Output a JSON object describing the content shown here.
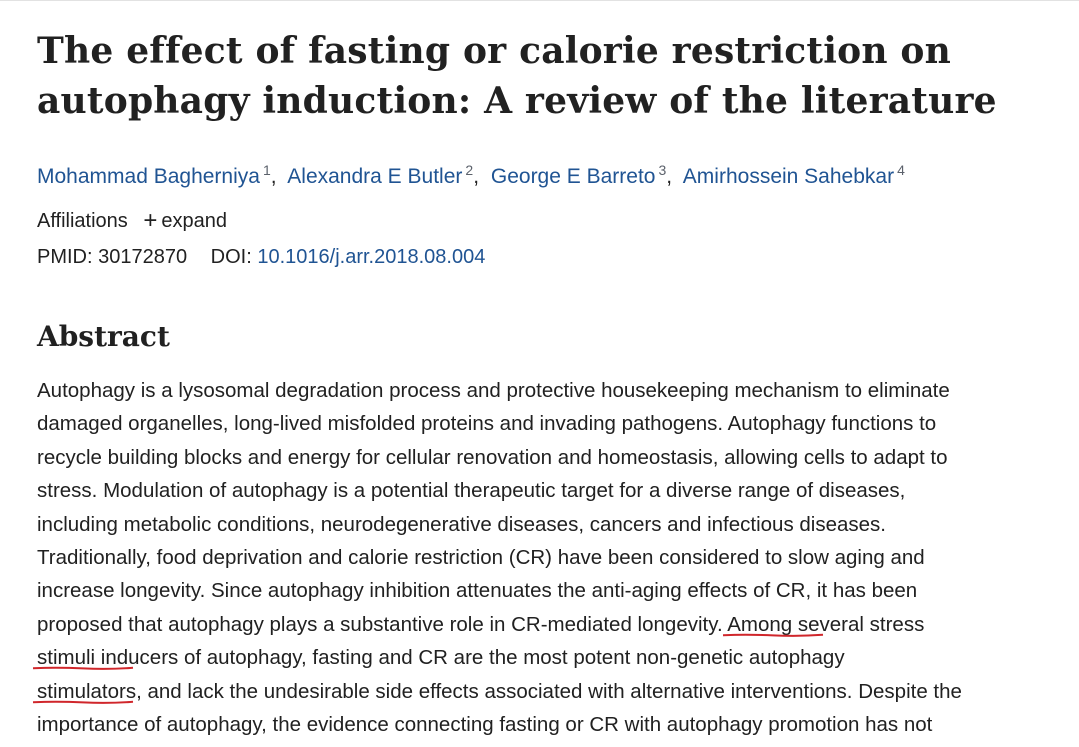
{
  "article": {
    "title": "The effect of fasting or calorie restriction on autophagy induction: A review of the literature",
    "authors": [
      {
        "name": "Mohammad Bagherniya",
        "aff": "1"
      },
      {
        "name": "Alexandra E Butler",
        "aff": "2"
      },
      {
        "name": "George E Barreto",
        "aff": "3"
      },
      {
        "name": "Amirhossein Sahebkar",
        "aff": "4"
      }
    ],
    "author_separator": ",",
    "affiliations_label": "Affiliations",
    "expand_label": "expand",
    "expand_icon": "plus-icon",
    "pmid_label": "PMID:",
    "pmid": "30172870",
    "doi_label": "DOI:",
    "doi": "10.1016/j.arr.2018.08.004"
  },
  "abstract": {
    "heading": "Abstract",
    "lines": [
      {
        "before": "Autophagy is a lysosomal degradation process and protective housekeeping mechanism to eliminate",
        "highlight": "",
        "after": ""
      },
      {
        "before": "damaged organelles, long-lived misfolded proteins and invading pathogens. Autophagy functions to",
        "highlight": "",
        "after": ""
      },
      {
        "before": "recycle building blocks and energy for cellular renovation and homeostasis, allowing cells to adapt to",
        "highlight": "",
        "after": ""
      },
      {
        "before": "stress. Modulation of autophagy is a potential therapeutic target for a diverse range of diseases,",
        "highlight": "",
        "after": ""
      },
      {
        "before": "including metabolic conditions, neurodegenerative diseases, cancers and infectious diseases.",
        "highlight": "",
        "after": ""
      },
      {
        "before": "Traditionally, food deprivation and calorie restriction (CR) have been considered to slow aging and",
        "highlight": "",
        "after": ""
      },
      {
        "before": "increase longevity. Since autophagy inhibition attenuates the anti-aging effects of CR, it has been",
        "highlight": "",
        "after": ""
      },
      {
        "before": "proposed that autophagy plays a substantive role in CR-mediated longevity. ",
        "highlight": "Among several stress",
        "after": ""
      },
      {
        "before": "",
        "highlight": "stimuli inducers of autophagy, fasting and CR are the most potent non-genetic autophagy",
        "after": ""
      },
      {
        "before": "",
        "highlight": "stimulators, and lack the undesirable side effects associated with alternative interventions.",
        "after": " Despite the"
      },
      {
        "before": "importance of autophagy, the evidence connecting fasting or CR with autophagy promotion has not",
        "highlight": "",
        "after": ""
      }
    ]
  },
  "colors": {
    "link": "#205493",
    "text": "#212121",
    "annotation_underline": "#d0262b"
  }
}
